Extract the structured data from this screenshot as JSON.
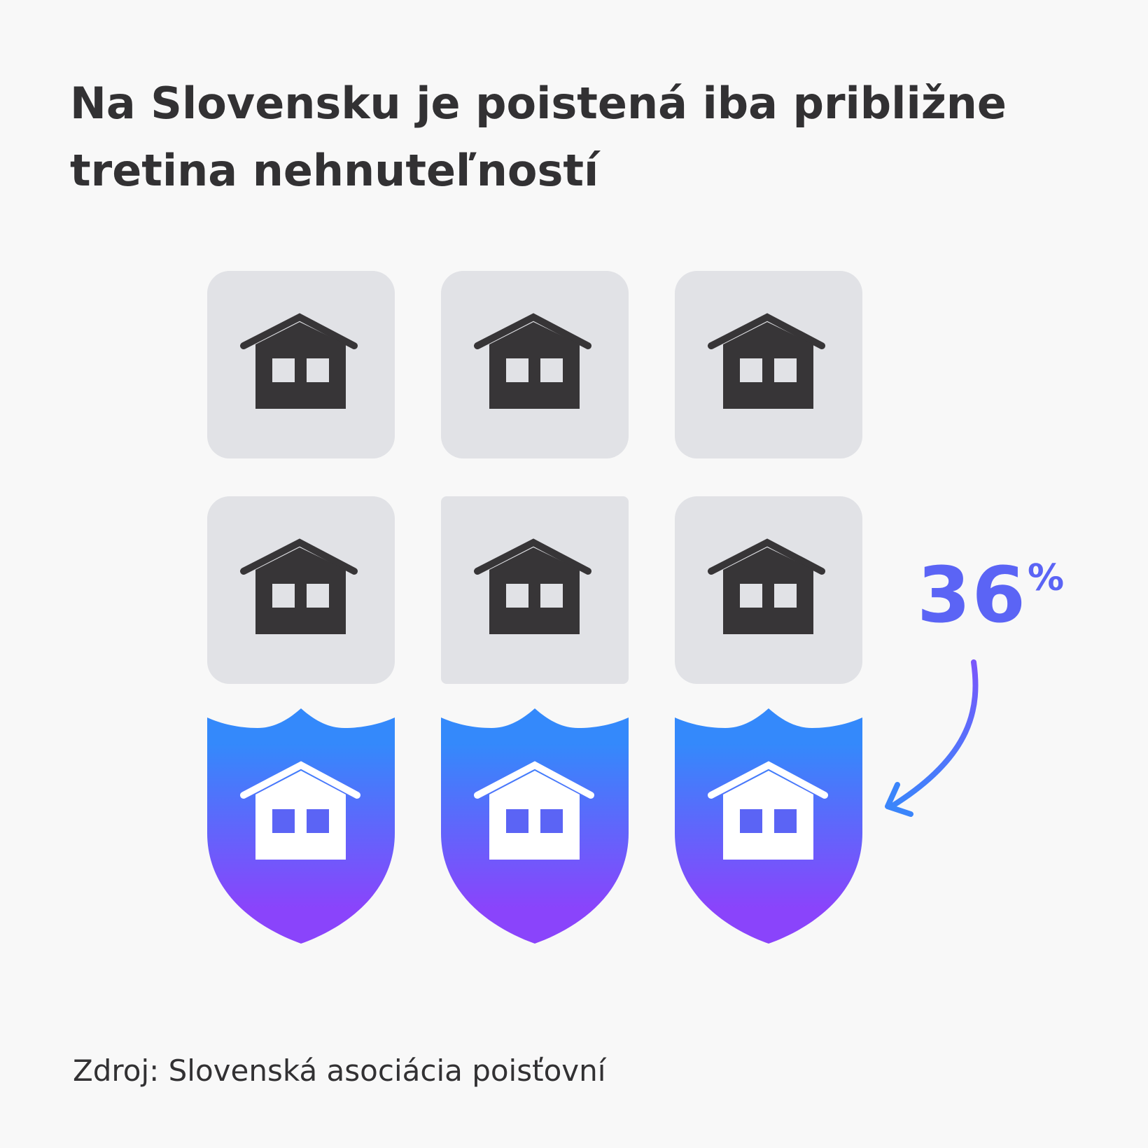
{
  "title": "Na Slovensku je poistená iba približne tretina nehnuteľností",
  "highlight": {
    "value": "36",
    "unit": "%",
    "color": "#5b64f5"
  },
  "grid": {
    "total_houses": 9,
    "insured_houses": 3,
    "house_icon": "house-icon",
    "insured_icon": "shield-house-icon",
    "tile_color": "#e1e2e6",
    "house_color": "#373537",
    "shield_gradient": [
      "#3489fb",
      "#8a44fb"
    ]
  },
  "source": "Zdroj: Slovenská asociácia poisťovní"
}
